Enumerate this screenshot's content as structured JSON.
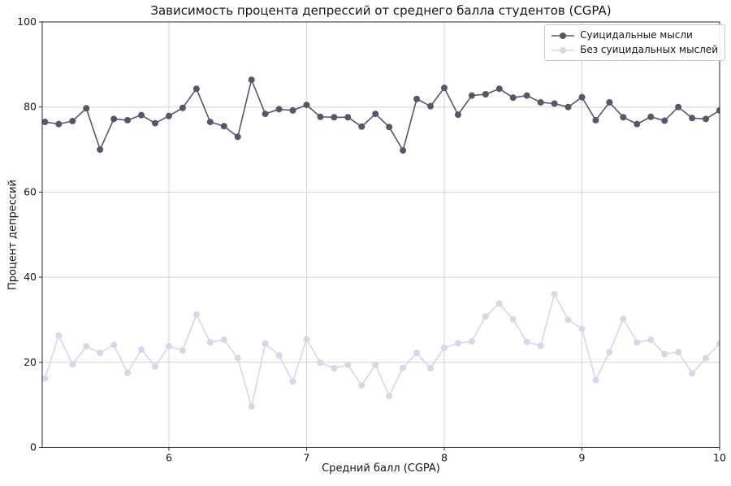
{
  "chart_data": {
    "type": "line",
    "title": "Зависимость процента депрессий от среднего балла студентов (CGPA)",
    "xlabel": "Средний балл (CGPA)",
    "ylabel": "Процент депрессий",
    "xlim": [
      5.08,
      10.0
    ],
    "ylim": [
      0,
      100
    ],
    "xticks": [
      6,
      7,
      8,
      9,
      10
    ],
    "yticks": [
      0,
      20,
      40,
      60,
      80,
      100
    ],
    "grid": true,
    "legend_position": "upper right",
    "marker": "circle",
    "colors": {
      "grid": "#d4d4d4",
      "spine": "#2a2a2a",
      "text": "#151515",
      "background": "#ffffff"
    },
    "x": [
      5.1,
      5.2,
      5.3,
      5.4,
      5.5,
      5.6,
      5.7,
      5.8,
      5.9,
      6.0,
      6.1,
      6.2,
      6.3,
      6.4,
      6.5,
      6.6,
      6.7,
      6.8,
      6.9,
      7.0,
      7.1,
      7.2,
      7.3,
      7.4,
      7.5,
      7.6,
      7.7,
      7.8,
      7.9,
      8.0,
      8.1,
      8.2,
      8.3,
      8.4,
      8.5,
      8.6,
      8.7,
      8.8,
      8.9,
      9.0,
      9.1,
      9.2,
      9.3,
      9.4,
      9.5,
      9.6,
      9.7,
      9.8,
      9.9,
      10.0
    ],
    "series": [
      {
        "name": "Суицидальные мысли",
        "color": "#57576b",
        "values": [
          76.5,
          76.0,
          76.7,
          79.7,
          70.0,
          77.2,
          76.9,
          78.1,
          76.2,
          77.9,
          79.8,
          84.3,
          76.5,
          75.5,
          73.0,
          86.4,
          78.4,
          79.5,
          79.2,
          80.5,
          77.7,
          77.6,
          77.6,
          75.4,
          78.4,
          75.3,
          69.8,
          81.9,
          80.2,
          84.5,
          78.2,
          82.7,
          83.0,
          84.3,
          82.2,
          82.7,
          81.1,
          80.8,
          80.0,
          82.3,
          76.9,
          81.1,
          77.6,
          76.0,
          77.7,
          76.8,
          80.0,
          77.4,
          77.2,
          79.2
        ]
      },
      {
        "name": "Без суицидальных мыслей",
        "color": "#d9d6e9",
        "values": [
          16.2,
          26.3,
          19.5,
          23.8,
          22.2,
          24.1,
          17.5,
          23.0,
          19.0,
          23.8,
          22.8,
          31.2,
          24.7,
          25.3,
          21.0,
          9.6,
          24.4,
          21.6,
          15.5,
          25.4,
          19.9,
          18.6,
          19.4,
          14.6,
          19.4,
          12.1,
          18.7,
          22.2,
          18.6,
          23.4,
          24.5,
          24.9,
          30.8,
          33.8,
          30.1,
          24.8,
          23.9,
          36.0,
          30.0,
          27.9,
          15.8,
          22.4,
          30.2,
          24.7,
          25.3,
          21.9,
          22.4,
          17.4,
          21.0,
          24.4
        ]
      }
    ]
  }
}
